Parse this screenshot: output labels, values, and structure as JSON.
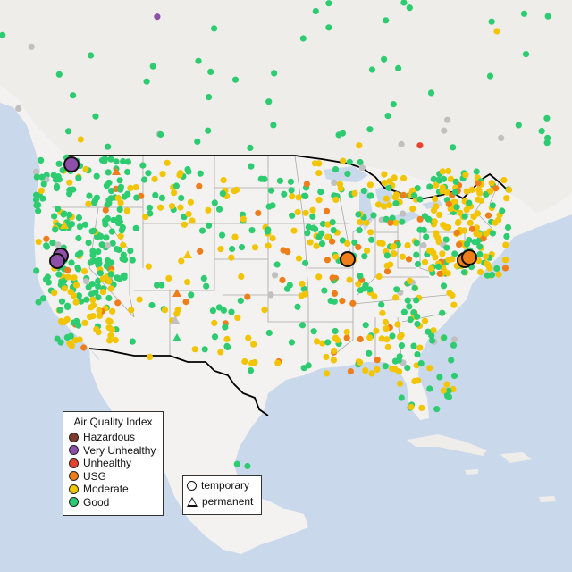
{
  "legend": {
    "title": "Air Quality Index",
    "categories": [
      {
        "label": "Hazardous",
        "color": "#7e3b2c"
      },
      {
        "label": "Very Unhealthy",
        "color": "#8e4fa8"
      },
      {
        "label": "Unhealthy",
        "color": "#e8432f"
      },
      {
        "label": "USG",
        "color": "#ef7d1a"
      },
      {
        "label": "Moderate",
        "color": "#f2c500"
      },
      {
        "label": "Good",
        "color": "#2ecc71"
      }
    ],
    "monitor_types": [
      {
        "label": "temporary",
        "shape": "circle-icon"
      },
      {
        "label": "permanent",
        "shape": "triangle-icon"
      }
    ]
  },
  "colors": {
    "water": "#c9d8ea",
    "land": "#f1efec",
    "us_land": "#f5f5f5",
    "state_border": "#a8a8a8",
    "country_border": "#000000",
    "gray_monitor": "#c0c0c0"
  }
}
